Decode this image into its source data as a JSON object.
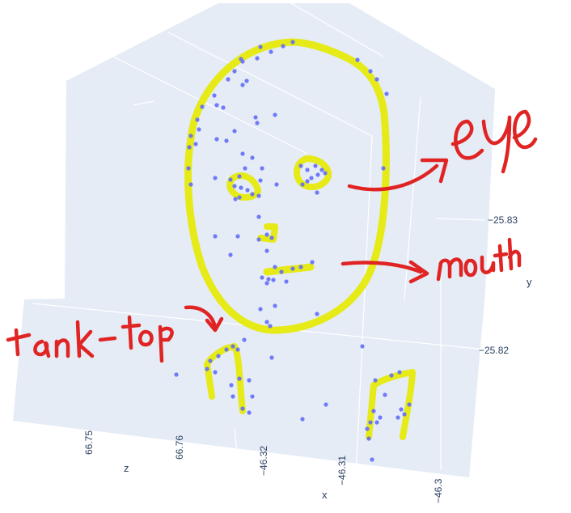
{
  "chart_data": {
    "type": "scatter3d",
    "axes": {
      "x": {
        "title": "x",
        "ticks": [
          "−46.32",
          "−46.31",
          "−46.3"
        ]
      },
      "y": {
        "title": "y",
        "ticks": [
          "−25.83",
          "−25.82"
        ]
      },
      "z": {
        "title": "z",
        "ticks": [
          "66.75",
          "66.76"
        ]
      }
    },
    "colors": {
      "background": "#e5ecf6",
      "grid": "#ffffff",
      "marker": "#636efa",
      "highlight": "#e6ea0a",
      "annotation": "#e02424"
    },
    "annotations": [
      "eye",
      "mouth",
      "tank-top"
    ]
  }
}
